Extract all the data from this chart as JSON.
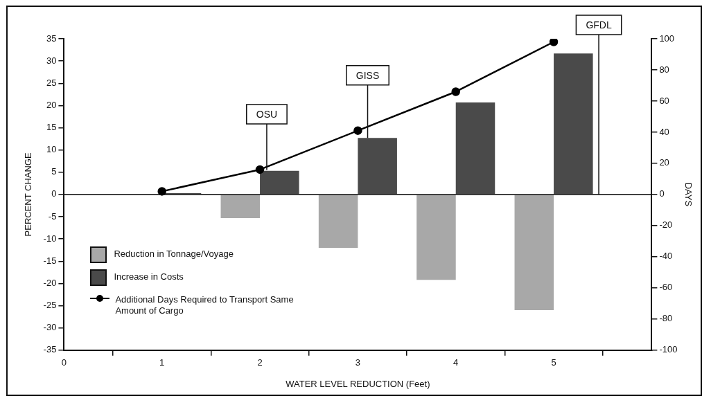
{
  "chart_data": {
    "type": "bar",
    "xlabel": "WATER LEVEL REDUCTION (Feet)",
    "ylabel": "PERCENT CHANGE",
    "y2label": "DAYS",
    "x": [
      1,
      2,
      3,
      4,
      5
    ],
    "series": [
      {
        "name": "Reduction in Tonnage/Voyage",
        "color": "#a8a8a8",
        "values": [
          null,
          -5.3,
          -12,
          -19.2,
          -26
        ]
      },
      {
        "name": "Increase in Costs",
        "color": "#4a4a4a",
        "values": [
          0.3,
          5.3,
          12.7,
          20.7,
          31.7
        ]
      },
      {
        "name": "Additional Days Required to Transport Same Amount of Cargo",
        "type": "line",
        "axis": "y2",
        "color": "#000000",
        "values": [
          2,
          16,
          41,
          66,
          98
        ]
      }
    ],
    "xlim": [
      0,
      6
    ],
    "xticks": [
      0,
      1,
      2,
      3,
      4,
      5
    ],
    "ylim": [
      -35,
      35
    ],
    "yticks": [
      -35,
      -30,
      -25,
      -20,
      -15,
      -10,
      -5,
      0,
      5,
      10,
      15,
      20,
      25,
      30,
      35
    ],
    "y2lim": [
      -100,
      100
    ],
    "y2ticks": [
      -100,
      -80,
      -60,
      -40,
      -20,
      0,
      20,
      40,
      60,
      80,
      100
    ],
    "ref_lines": [
      {
        "axis": "y",
        "value": 0,
        "color": "#000000"
      }
    ],
    "annotations": [
      {
        "text": "OSU",
        "x": 2.07,
        "y": 5.5
      },
      {
        "text": "GISS",
        "x": 3.1,
        "y": 12.7
      },
      {
        "text": "GFDL",
        "x": 5.46,
        "y": 0
      }
    ],
    "marker": "circle",
    "line_style": "solid",
    "grid": false,
    "legend": "bottom left"
  }
}
